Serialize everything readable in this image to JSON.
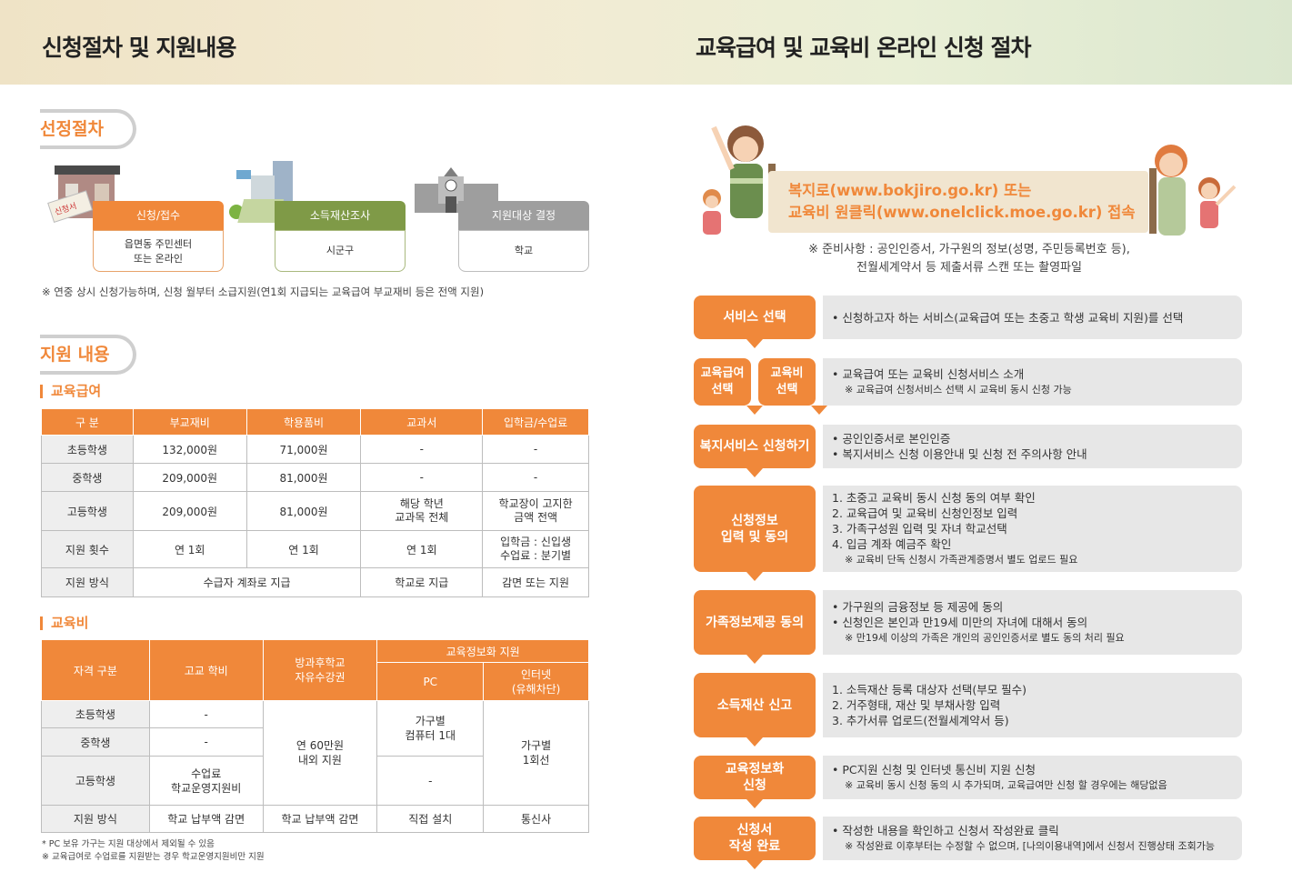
{
  "left": {
    "title": "신청절차 및 지원내용",
    "section1": "선정절차",
    "process": [
      {
        "tab": "신청/접수",
        "body1": "읍면동 주민센터",
        "body2": "또는 온라인",
        "tab_color": "#f0883a"
      },
      {
        "tab": "소득재산조사",
        "body1": "시군구",
        "body2": "",
        "tab_color": "#7f9a47"
      },
      {
        "tab": "지원대상 결정",
        "body1": "학교",
        "body2": "",
        "tab_color": "#9e9e9e"
      }
    ],
    "stamp_text": "신청서",
    "process_note": "※ 연중 상시 신청가능하며, 신청 월부터 소급지원(연1회 지급되는 교육급여 부교재비 등은 전액 지원)",
    "section2": "지원 내용",
    "sub1": "교육급여",
    "t1": {
      "headers": [
        "구 분",
        "부교재비",
        "학용품비",
        "교과서",
        "입학금/수업료"
      ],
      "r1": [
        "초등학생",
        "132,000원",
        "71,000원",
        "-",
        "-"
      ],
      "r2": [
        "중학생",
        "209,000원",
        "81,000원",
        "-",
        "-"
      ],
      "r3": [
        "고등학생",
        "209,000원",
        "81,000원",
        "해당 학년",
        "교과목 전체",
        "학교장이 고지한",
        "금액 전액"
      ],
      "r4": [
        "지원 횟수",
        "연 1회",
        "연 1회",
        "연 1회",
        "입학금 : 신입생",
        "수업료 : 분기별"
      ],
      "r5": [
        "지원 방식",
        "수급자 계좌로 지급",
        "학교로 지급",
        "감면 또는 지원"
      ]
    },
    "sub2": "교육비",
    "t2": {
      "h_qual": "자격 구분",
      "h_tuition": "고교 학비",
      "h_after1": "방과후학교",
      "h_after2": "자유수강권",
      "h_info": "교육정보화 지원",
      "h_pc": "PC",
      "h_net1": "인터넷",
      "h_net2": "(유해차단)",
      "r_elem": "초등학생",
      "r_mid": "중학생",
      "r_high": "고등학생",
      "r_method": "지원 방식",
      "dash": "-",
      "high_tuition1": "수업료",
      "high_tuition2": "학교운영지원비",
      "after_val1": "연 60만원",
      "after_val2": "내외 지원",
      "pc_val1": "가구별",
      "pc_val2": "컴퓨터 1대",
      "net_val1": "가구별",
      "net_val2": "1회선",
      "m_tuition": "학교 납부액 감면",
      "m_after": "학교 납부액 감면",
      "m_pc": "직접 설치",
      "m_net": "통신사"
    },
    "foot1": "* PC 보유 가구는 지원 대상에서 제외될 수 있음",
    "foot2": "※ 교육급여로 수업료를 지원받는 경우 학교운영지원비만 지원"
  },
  "right": {
    "title": "교육급여 및 교육비 온라인 신청 절차",
    "banner1": "복지로(www.bokjiro.go.kr) 또는",
    "banner2": "교육비 원클릭(www.onelclick.moe.go.kr) 접속",
    "prep1": "※ 준비사항 : 공인인증서, 가구원의 정보(성명, 주민등록번호 등),",
    "prep2": "전월세계약서 등 제출서류 스캔 또는 촬영파일",
    "steps": [
      {
        "btn": "서비스 선택",
        "lines": [
          "• 신청하고자 하는 서비스(교육급여 또는 초중고 학생 교육비 지원)를 선택"
        ],
        "small": []
      },
      {
        "btn_a1": "교육급여",
        "btn_a2": "선택",
        "btn_b1": "교육비",
        "btn_b2": "선택",
        "lines": [
          "• 교육급여 또는 교육비 신청서비스 소개"
        ],
        "small": [
          "※ 교육급여 신청서비스 선택 시 교육비 동시 신청 가능"
        ]
      },
      {
        "btn": "복지서비스 신청하기",
        "lines": [
          "• 공인인증서로 본인인증",
          "• 복지서비스 신청 이용안내 및 신청 전 주의사항 안내"
        ],
        "small": []
      },
      {
        "btn1": "신청정보",
        "btn2": "입력 및 동의",
        "lines": [
          "1. 초중고 교육비 동시 신청 동의 여부 확인",
          "2. 교육급여 및 교육비 신청인정보 입력",
          "3. 가족구성원 입력 및 자녀 학교선택",
          "4. 입금 계좌 예금주 확인"
        ],
        "small": [
          "※ 교육비 단독 신청시 가족관계증명서 별도 업로드 필요"
        ]
      },
      {
        "btn": "가족정보제공 동의",
        "lines": [
          "• 가구원의 금융정보 등 제공에 동의",
          "• 신청인은 본인과 만19세 미만의 자녀에 대해서 동의"
        ],
        "small": [
          "※ 만19세 이상의 가족은 개인의 공인인증서로 별도 동의 처리 필요"
        ]
      },
      {
        "btn": "소득재산 신고",
        "lines": [
          "1. 소득재산 등록 대상자 선택(부모 필수)",
          "2. 거주형태, 재산 및 부채사항 입력",
          "3. 추가서류 업로드(전월세계약서 등)"
        ],
        "small": []
      },
      {
        "btn1": "교육정보화",
        "btn2": "신청",
        "lines": [
          "• PC지원 신청 및 인터넷 통신비 지원 신청"
        ],
        "small": [
          "※ 교육비 동시 신청 동의 시 추가되며, 교육급여만 신청 할 경우에는 해당없음"
        ]
      },
      {
        "btn1": "신청서",
        "btn2": "작성 완료",
        "lines": [
          "• 작성한 내용을 확인하고 신청서 작성완료 클릭"
        ],
        "small": [
          "※ 작성완료 이후부터는 수정할 수 없으며, [나의이용내역]에서 신청서 진행상태 조회가능"
        ]
      }
    ]
  },
  "colors": {
    "accent": "#f0883a",
    "green": "#7f9a47",
    "gray_tab": "#9e9e9e",
    "desc_bg": "#e7e7e7"
  }
}
